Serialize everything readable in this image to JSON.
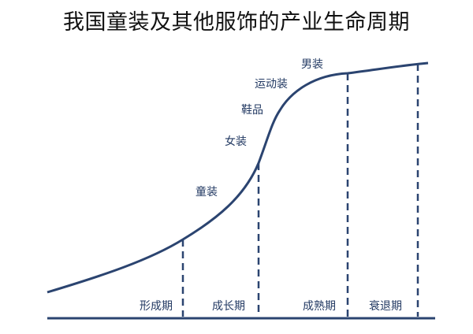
{
  "title": "我国童装及其他服饰的产业生命周期",
  "colors": {
    "curve": "#2b4470",
    "text": "#233a63",
    "title": "#111111"
  },
  "stages": [
    "形成期",
    "成长期",
    "成熟期",
    "衰退期"
  ],
  "products": [
    "童装",
    "女装",
    "鞋品",
    "运动装",
    "男装"
  ]
}
